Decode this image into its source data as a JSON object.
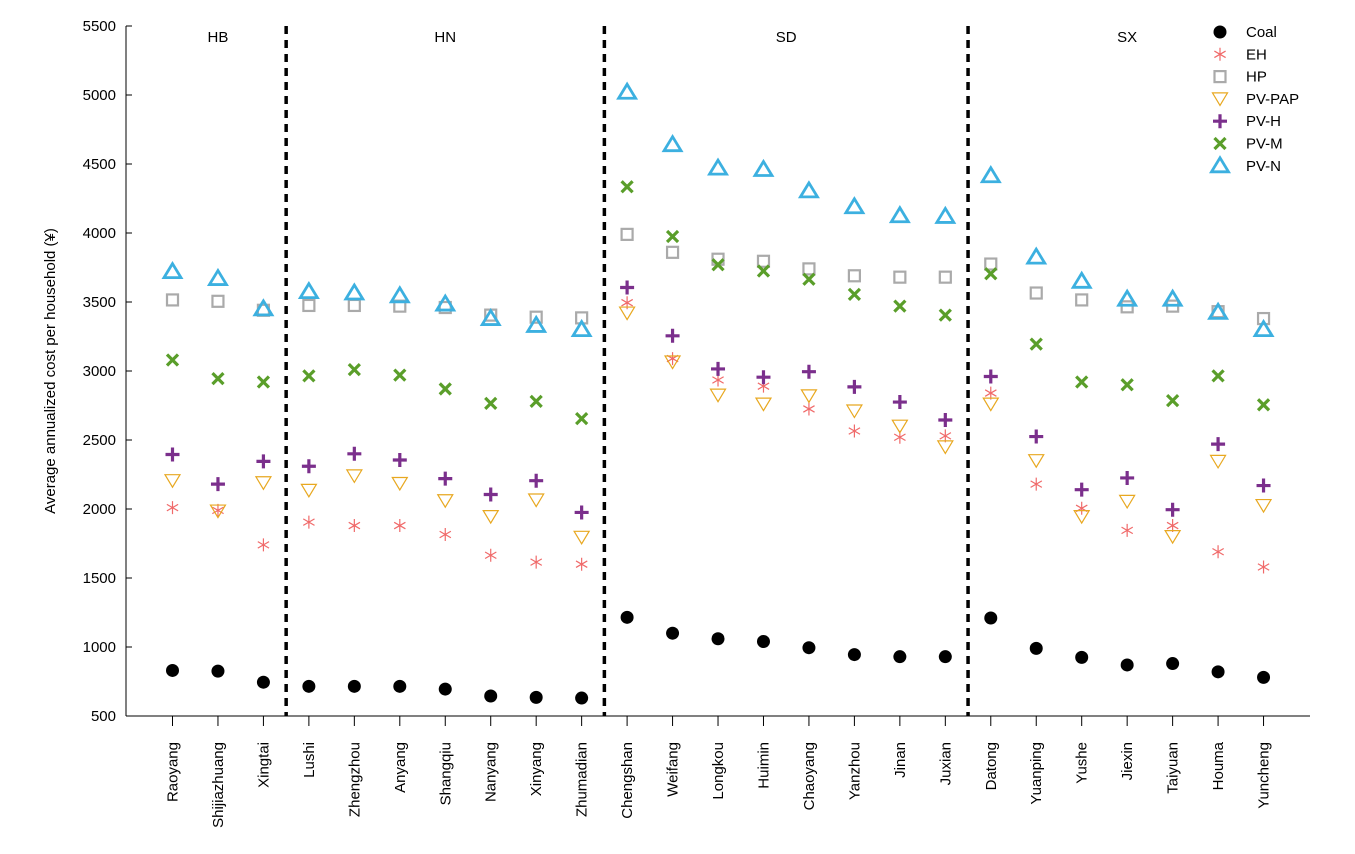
{
  "chart_data": {
    "type": "scatter",
    "ylabel": "Average annualized cost per household (¥)",
    "xlabel": "",
    "ylim": [
      500,
      5500
    ],
    "yticks": [
      500,
      1000,
      1500,
      2000,
      2500,
      3000,
      3500,
      4000,
      4500,
      5000,
      5500
    ],
    "grid": false,
    "legend_position": "top-right",
    "categories": [
      "Raoyang",
      "Shijiazhuang",
      "Xingtai",
      "Lushi",
      "Zhengzhou",
      "Anyang",
      "Shangqiu",
      "Nanyang",
      "Xinyang",
      "Zhumadian",
      "Chengshan",
      "Weifang",
      "Longkou",
      "Huimin",
      "Chaoyang",
      "Yanzhou",
      "Jinan",
      "Juxian",
      "Datong",
      "Yuanping",
      "Yushe",
      "Jiexin",
      "Taiyuan",
      "Houma",
      "Yuncheng"
    ],
    "groups": [
      {
        "label": "HB",
        "start": 0,
        "end": 2
      },
      {
        "label": "HN",
        "start": 3,
        "end": 9
      },
      {
        "label": "SD",
        "start": 10,
        "end": 17
      },
      {
        "label": "SX",
        "start": 18,
        "end": 24
      }
    ],
    "series": [
      {
        "name": "Coal",
        "marker": "circle",
        "color": "#000000",
        "values": [
          830,
          825,
          745,
          715,
          715,
          715,
          695,
          645,
          635,
          630,
          1215,
          1100,
          1060,
          1040,
          995,
          945,
          930,
          930,
          1210,
          990,
          925,
          870,
          880,
          820,
          780
        ]
      },
      {
        "name": "EH",
        "marker": "asterisk",
        "color": "#f06a6a",
        "values": [
          2010,
          1990,
          1740,
          1905,
          1880,
          1880,
          1815,
          1665,
          1615,
          1600,
          3495,
          3090,
          2935,
          2890,
          2725,
          2565,
          2520,
          2530,
          2840,
          2180,
          2005,
          1845,
          1880,
          1690,
          1580
        ]
      },
      {
        "name": "HP",
        "marker": "square",
        "color": "#aaaaaa",
        "values": [
          3515,
          3505,
          3440,
          3475,
          3475,
          3470,
          3460,
          3405,
          3390,
          3385,
          3990,
          3860,
          3810,
          3795,
          3740,
          3690,
          3680,
          3680,
          3775,
          3565,
          3515,
          3465,
          3470,
          3430,
          3380
        ]
      },
      {
        "name": "PV-PAP",
        "marker": "triangle-down",
        "color": "#e8a820",
        "values": [
          2205,
          1985,
          2190,
          2135,
          2240,
          2185,
          2060,
          1945,
          2065,
          1795,
          3420,
          3065,
          2825,
          2760,
          2820,
          2710,
          2600,
          2450,
          2760,
          2350,
          1945,
          2055,
          1800,
          2345,
          2025
        ]
      },
      {
        "name": "PV-H",
        "marker": "plus",
        "color": "#7b2f8c",
        "values": [
          2395,
          2180,
          2345,
          2310,
          2400,
          2355,
          2220,
          2105,
          2205,
          1975,
          3605,
          3255,
          3015,
          2955,
          2995,
          2885,
          2775,
          2645,
          2960,
          2525,
          2140,
          2225,
          1995,
          2470,
          2170
        ]
      },
      {
        "name": "PV-M",
        "marker": "x",
        "color": "#5a9e2a",
        "values": [
          3080,
          2945,
          2920,
          2965,
          3010,
          2970,
          2870,
          2765,
          2780,
          2655,
          4335,
          3975,
          3770,
          3725,
          3665,
          3555,
          3470,
          3405,
          3705,
          3195,
          2920,
          2900,
          2785,
          2965,
          2755
        ]
      },
      {
        "name": "PV-N",
        "marker": "triangle-up",
        "color": "#3cb0e0",
        "values": [
          3720,
          3670,
          3450,
          3575,
          3565,
          3545,
          3485,
          3380,
          3330,
          3300,
          5020,
          4640,
          4470,
          4460,
          4305,
          4190,
          4125,
          4120,
          4415,
          3825,
          3650,
          3520,
          3520,
          3425,
          3300
        ]
      }
    ]
  }
}
